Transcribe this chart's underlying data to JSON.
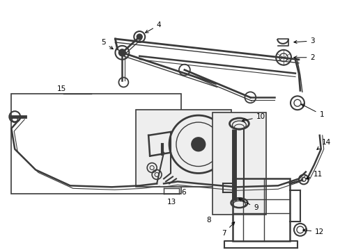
{
  "bg_color": "#ffffff",
  "line_color": "#3a3a3a",
  "figsize": [
    4.89,
    3.6
  ],
  "dpi": 100,
  "label_fs": 7.5
}
